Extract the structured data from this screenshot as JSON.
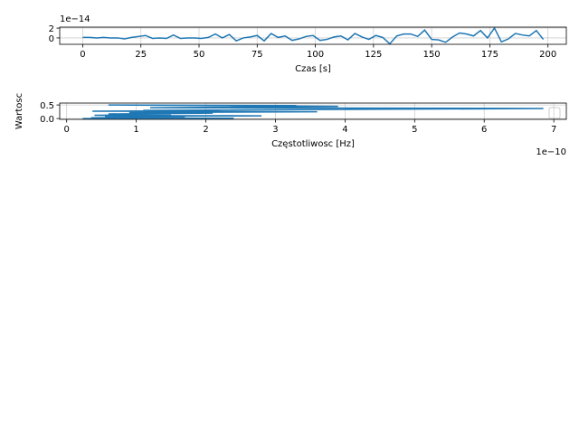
{
  "chart_data": [
    {
      "type": "line",
      "xlabel": "Czas [s]",
      "y_offset_label": "1e−14",
      "grid": true,
      "color": "#1f77b4",
      "x": [
        0,
        3,
        6,
        9,
        12,
        15,
        18,
        21,
        24,
        27,
        30,
        33,
        36,
        39,
        42,
        45,
        48,
        51,
        54,
        57,
        60,
        63,
        66,
        69,
        72,
        75,
        78,
        81,
        84,
        87,
        90,
        93,
        96,
        99,
        102,
        105,
        108,
        111,
        114,
        117,
        120,
        123,
        126,
        129,
        132,
        135,
        138,
        141,
        144,
        147,
        150,
        153,
        156,
        159,
        162,
        165,
        168,
        171,
        174,
        177,
        180,
        183,
        186,
        189,
        192,
        195,
        198
      ],
      "values": [
        0.1,
        0.1,
        0.0,
        0.1,
        0.0,
        0.0,
        -0.2,
        0.1,
        0.3,
        0.5,
        -0.1,
        0.0,
        -0.1,
        0.6,
        -0.1,
        0.0,
        0.0,
        -0.1,
        0.1,
        0.8,
        0.0,
        0.7,
        -0.6,
        0.0,
        0.2,
        0.5,
        -0.6,
        0.9,
        0.1,
        0.4,
        -0.5,
        -0.2,
        0.3,
        0.5,
        -0.5,
        -0.3,
        0.2,
        0.4,
        -0.4,
        0.9,
        0.2,
        -0.3,
        0.5,
        0.1,
        -1.2,
        0.4,
        0.8,
        0.8,
        0.3,
        1.6,
        -0.3,
        -0.4,
        -0.9,
        0.2,
        1.0,
        0.8,
        0.4,
        1.5,
        0.0,
        2.0,
        -0.8,
        -0.2,
        0.9,
        0.6,
        0.4,
        1.5,
        -0.3
      ],
      "xlim": [
        -9.9,
        207.9
      ],
      "xticks": [
        0,
        25,
        50,
        75,
        100,
        125,
        150,
        175,
        200
      ],
      "ylim": [
        -1.3,
        2.2
      ],
      "yticks": [
        0,
        2
      ]
    },
    {
      "type": "line",
      "xlabel": "Częstotliwosc [Hz]",
      "ylabel": "Wartosc",
      "x_offset_label": "1e−10",
      "grid": true,
      "color": "#1f77b4",
      "x": [
        0.23,
        2.4,
        0.35,
        1.7,
        0.55,
        2.8,
        0.4,
        1.5,
        0.6,
        2.1,
        0.9,
        3.6,
        0.37,
        2.2,
        1.1,
        6.85,
        1.2,
        3.9,
        0.6,
        3.3
      ],
      "values": [
        0.0,
        0.01,
        0.03,
        0.05,
        0.08,
        0.1,
        0.12,
        0.15,
        0.17,
        0.2,
        0.22,
        0.25,
        0.27,
        0.29,
        0.3,
        0.37,
        0.4,
        0.45,
        0.5,
        0.48
      ],
      "xlim": [
        -0.1,
        7.18
      ],
      "xticks": [
        0,
        1,
        2,
        3,
        4,
        5,
        6,
        7
      ],
      "ylim": [
        -0.03,
        0.57
      ],
      "yticks": [
        {
          "value": 0,
          "label": "0.0"
        },
        {
          "value": 0.5,
          "label": "0.5"
        }
      ]
    }
  ]
}
